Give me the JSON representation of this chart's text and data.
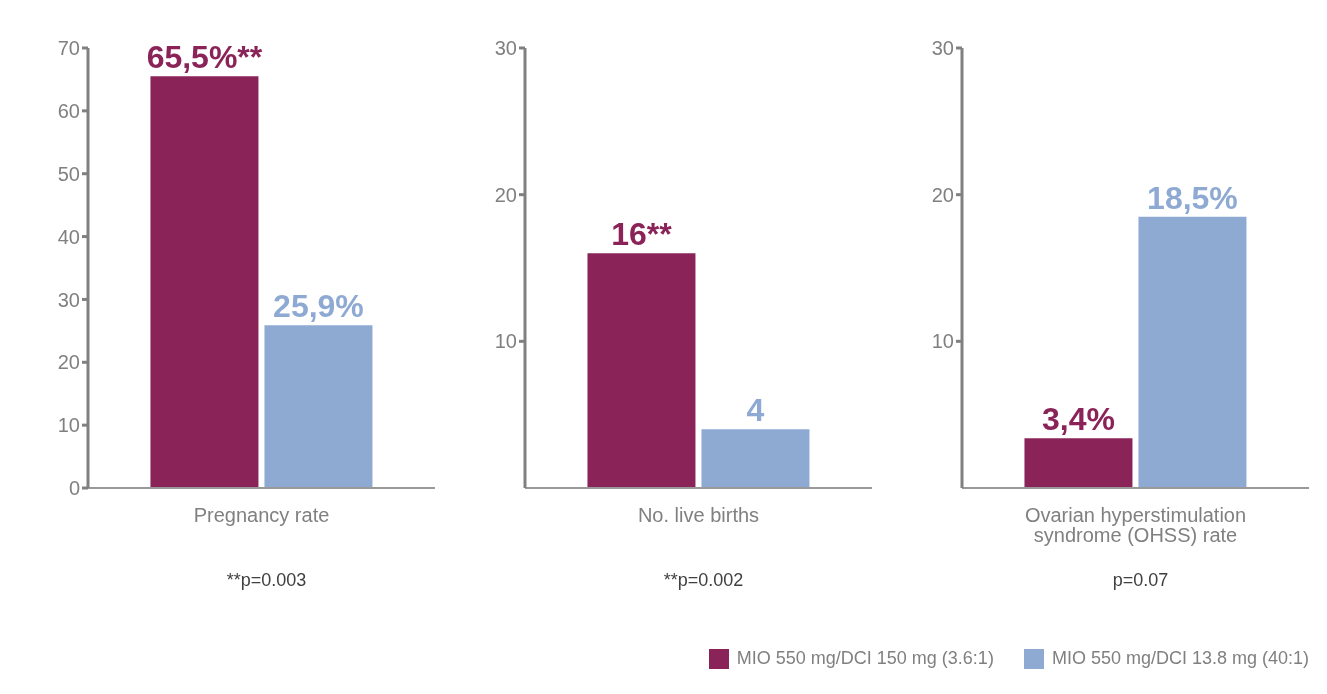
{
  "chart_data": [
    {
      "type": "bar",
      "categories": [
        "Pregnancy rate"
      ],
      "ylim": [
        0,
        70
      ],
      "yticks": [
        0,
        10,
        20,
        30,
        40,
        50,
        60,
        70
      ],
      "legend": "bottom",
      "annotations": [
        "**p=0.003"
      ],
      "series": [
        {
          "name": "MIO 550 mg/DCI 150 mg (3.6:1)",
          "color": "#8a2358",
          "values": [
            65.5
          ],
          "value_labels": [
            "65,5%**"
          ]
        },
        {
          "name": "MIO 550 mg/DCI 13.8 mg (40:1)",
          "color": "#8eaad3",
          "values": [
            25.9
          ],
          "value_labels": [
            "25,9%"
          ]
        }
      ]
    },
    {
      "type": "bar",
      "categories": [
        "No. live births"
      ],
      "ylim": [
        0,
        30
      ],
      "yticks": [
        10,
        20,
        30
      ],
      "annotations": [
        "**p=0.002"
      ],
      "series": [
        {
          "color": "#8a2358",
          "values": [
            16
          ],
          "value_labels": [
            "16**"
          ]
        },
        {
          "color": "#8eaad3",
          "values": [
            4
          ],
          "value_labels": [
            "4"
          ]
        }
      ]
    },
    {
      "type": "bar",
      "categories": [
        "Ovarian hyperstimulation syndrome (OHSS) rate"
      ],
      "ylim": [
        0,
        30
      ],
      "yticks": [
        10,
        20,
        30
      ],
      "annotations": [
        "p=0.07"
      ],
      "series": [
        {
          "color": "#8a2358",
          "values": [
            3.4
          ],
          "value_labels": [
            "3,4%"
          ]
        },
        {
          "color": "#8eaad3",
          "values": [
            18.5
          ],
          "value_labels": [
            "18,5%"
          ]
        }
      ]
    }
  ]
}
